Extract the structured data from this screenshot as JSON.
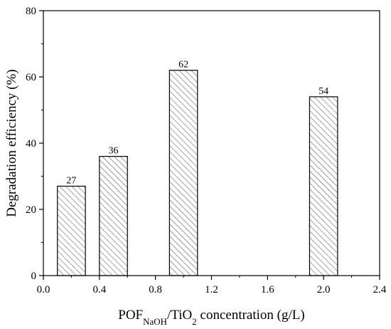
{
  "chart_data": {
    "type": "bar",
    "x": [
      0.2,
      0.5,
      1.0,
      2.0
    ],
    "values": [
      27,
      36,
      62,
      54
    ],
    "bar_width": 0.2,
    "data_labels": [
      "27",
      "36",
      "62",
      "54"
    ],
    "xlim": [
      0.0,
      2.4
    ],
    "ylim": [
      0,
      80
    ],
    "x_ticks": [
      0.0,
      0.4,
      0.8,
      1.2,
      1.6,
      2.0,
      2.4
    ],
    "x_tick_labels": [
      "0.0",
      "0.4",
      "0.8",
      "1.2",
      "1.6",
      "2.0",
      "2.4"
    ],
    "y_ticks": [
      0,
      20,
      40,
      60,
      80
    ],
    "y_tick_labels": [
      "0",
      "20",
      "40",
      "60",
      "80"
    ],
    "ylabel": "Degradation efficiency (%)",
    "xlabel": {
      "part1": "POF",
      "sub1": "NaOH",
      "part2": "/TiO",
      "sub2": "2",
      "part3": " concentration (g/L)"
    },
    "grid": false,
    "legend": "none",
    "bar_fill": "hatched",
    "colors": {
      "axis": "#000000",
      "bar_edge": "#000000",
      "hatch": "#555555",
      "background": "#ffffff"
    }
  }
}
